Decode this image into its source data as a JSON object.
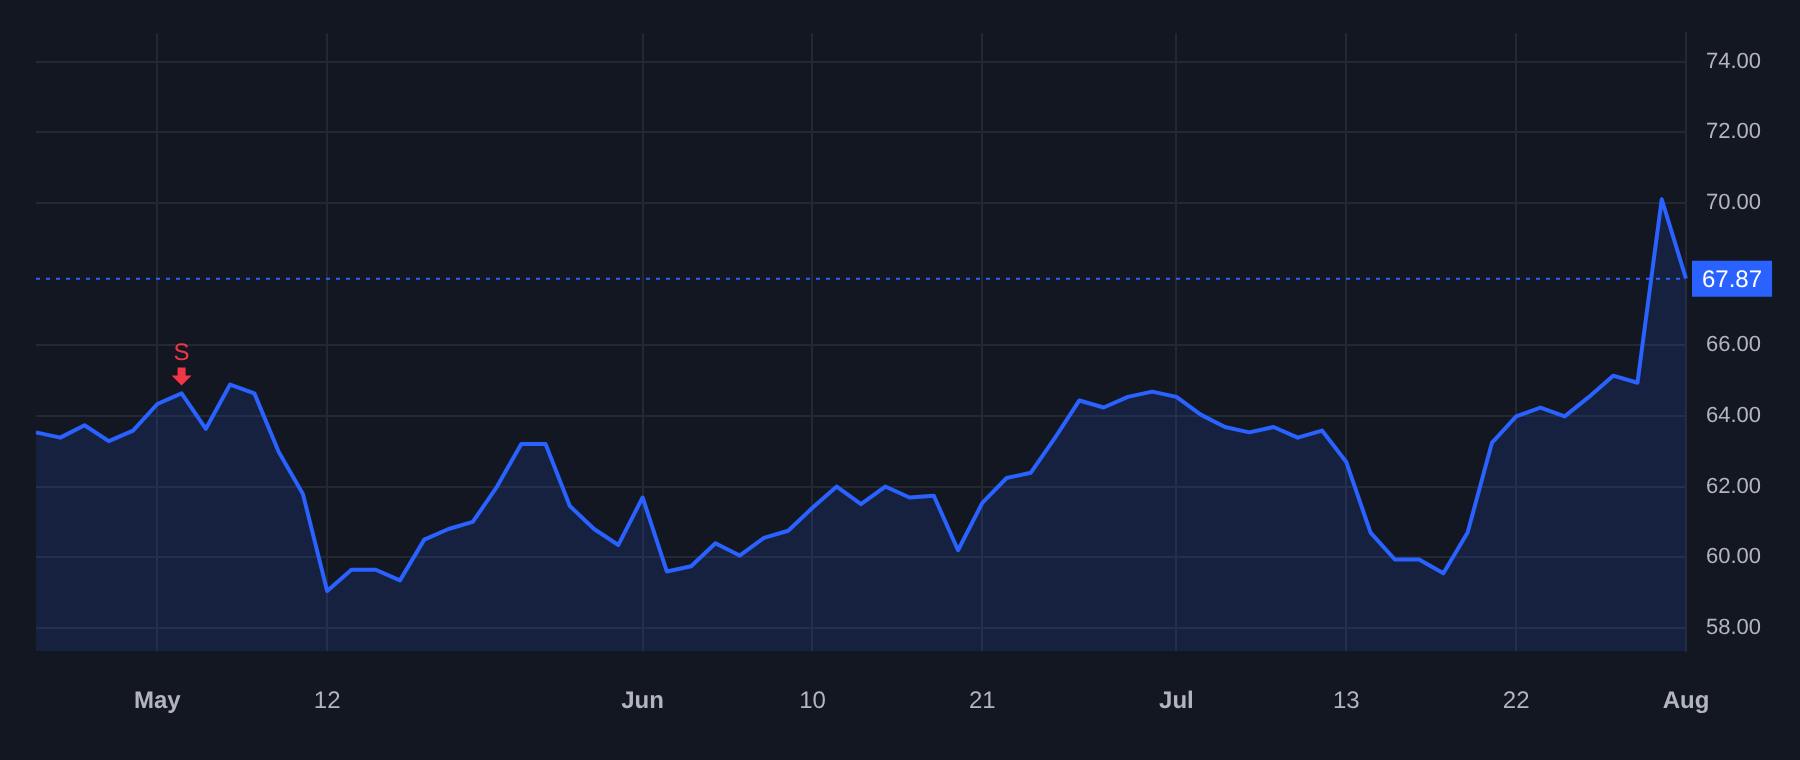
{
  "chart_data": {
    "type": "area",
    "categories": [
      null,
      null,
      null,
      null,
      null,
      "May",
      null,
      null,
      null,
      null,
      null,
      null,
      "12",
      null,
      null,
      null,
      null,
      null,
      null,
      null,
      null,
      null,
      null,
      null,
      null,
      "Jun",
      null,
      null,
      null,
      null,
      null,
      null,
      "10",
      null,
      null,
      null,
      null,
      null,
      null,
      "21",
      null,
      null,
      null,
      null,
      null,
      null,
      null,
      "Jul",
      null,
      null,
      null,
      null,
      null,
      null,
      "13",
      null,
      null,
      null,
      null,
      null,
      null,
      "22",
      null,
      null,
      null,
      null,
      null,
      null,
      "Aug"
    ],
    "series": [
      {
        "color": "#2962ff",
        "values": [
          63.53,
          63.38,
          63.73,
          63.28,
          63.58,
          64.33,
          64.63,
          63.63,
          64.88,
          64.63,
          62.98,
          61.79,
          59.05,
          59.65,
          59.65,
          59.35,
          60.5,
          60.8,
          61.0,
          62.0,
          63.2,
          63.2,
          61.45,
          60.8,
          60.35,
          61.69,
          59.6,
          59.75,
          60.4,
          60.05,
          60.55,
          60.75,
          61.4,
          62.0,
          61.5,
          62.0,
          61.69,
          61.74,
          60.2,
          61.54,
          62.24,
          62.39,
          63.38,
          64.43,
          64.23,
          64.53,
          64.68,
          64.53,
          64.03,
          63.68,
          63.53,
          63.68,
          63.38,
          63.58,
          62.69,
          60.7,
          59.94,
          59.94,
          59.55,
          60.7,
          63.23,
          63.98,
          64.23,
          63.98,
          64.53,
          65.13,
          64.93,
          70.11,
          67.87
        ]
      }
    ],
    "ylim": [
      57.35,
      74.8
    ],
    "yticks": [
      {
        "value": 58,
        "label": "58.00"
      },
      {
        "value": 60,
        "label": "60.00"
      },
      {
        "value": 62,
        "label": "62.00"
      },
      {
        "value": 64,
        "label": "64.00"
      },
      {
        "value": 66,
        "label": "66.00"
      },
      {
        "value": 70,
        "label": "70.00"
      },
      {
        "value": 72,
        "label": "72.00"
      },
      {
        "value": 74,
        "label": "74.00"
      }
    ],
    "ref_lines": [
      {
        "axis": "y",
        "value": 67.87,
        "label": "67.87",
        "color": "#2962ff",
        "line_style": "dotted"
      }
    ],
    "annotations": [
      {
        "text": "S",
        "y": 64.63
      }
    ],
    "grid": true,
    "legend": false,
    "marker": "none",
    "line_style": "solid"
  }
}
